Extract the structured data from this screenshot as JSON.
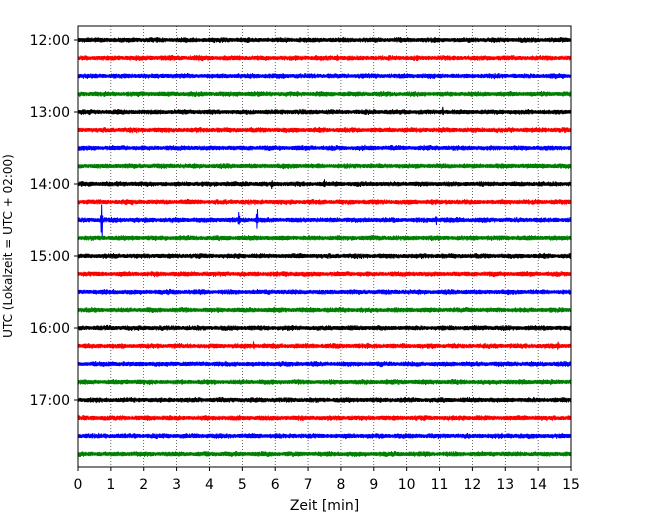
{
  "chart_data": {
    "type": "line",
    "title": "",
    "xlabel": "Zeit  [min]",
    "ylabel": "UTC (Lokalzeit = UTC + 02:00)",
    "xlim": [
      0,
      15
    ],
    "x_ticks": [
      "0",
      "1",
      "2",
      "3",
      "4",
      "5",
      "6",
      "7",
      "8",
      "9",
      "10",
      "11",
      "12",
      "13",
      "14",
      "15"
    ],
    "y_ticks": [
      {
        "label": "12:00",
        "trace": 0
      },
      {
        "label": "13:00",
        "trace": 4
      },
      {
        "label": "14:00",
        "trace": 8
      },
      {
        "label": "15:00",
        "trace": 12
      },
      {
        "label": "16:00",
        "trace": 16
      },
      {
        "label": "17:00",
        "trace": 20
      }
    ],
    "grid": "vertical dotted",
    "trace_interval_minutes": 15,
    "trace_count": 24,
    "colors": [
      "#000000",
      "#ff0000",
      "#0000ff",
      "#008000"
    ],
    "events": [
      {
        "trace": 10,
        "minute": 0.72,
        "amplitude": 34
      },
      {
        "trace": 10,
        "minute": 4.9,
        "amplitude": 9
      },
      {
        "trace": 10,
        "minute": 5.45,
        "amplitude": 14
      },
      {
        "trace": 10,
        "minute": 10.9,
        "amplitude": 4
      },
      {
        "trace": 4,
        "minute": 11.1,
        "amplitude": 5
      },
      {
        "trace": 17,
        "minute": 5.35,
        "amplitude": 4
      },
      {
        "trace": 17,
        "minute": 14.6,
        "amplitude": 4
      },
      {
        "trace": 8,
        "minute": 5.9,
        "amplitude": 3
      },
      {
        "trace": 8,
        "minute": 7.5,
        "amplitude": 3
      },
      {
        "trace": 1,
        "minute": 7.9,
        "amplitude": 3
      }
    ]
  }
}
